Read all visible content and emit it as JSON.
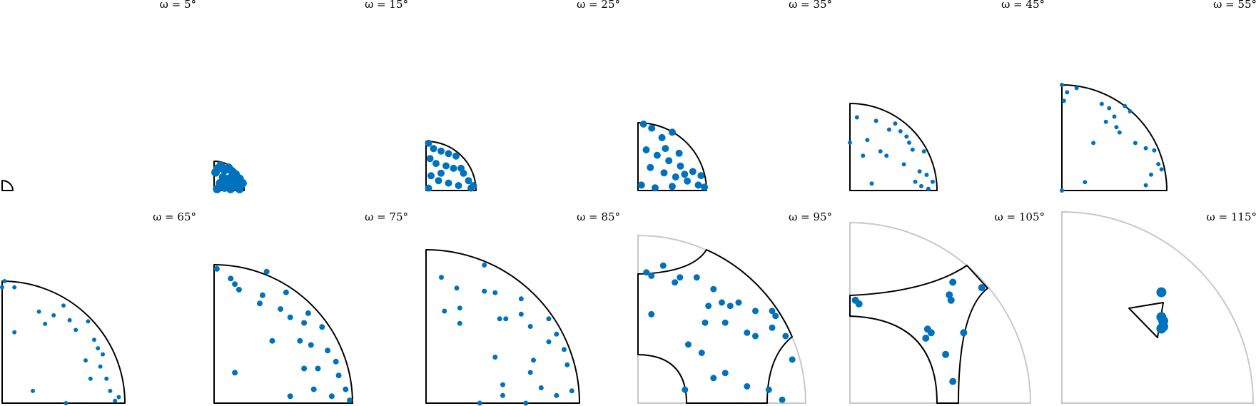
{
  "chart_data": {
    "type": "scatter",
    "layout": "2x6 grid of section plots",
    "marker_color": "#0072BD",
    "outline_color": "#000000",
    "outer_outline_color": "#c8c8c8",
    "grid": false,
    "panels": [
      {
        "label": "ω = 5°",
        "omega": 5,
        "points": []
      },
      {
        "label": "ω = 15°",
        "omega": 15,
        "points": [
          [
            0.05,
            0.62
          ],
          [
            0.12,
            0.75
          ],
          [
            0.22,
            0.85
          ],
          [
            0.35,
            0.7
          ],
          [
            0.48,
            0.78
          ],
          [
            0.6,
            0.65
          ],
          [
            0.72,
            0.55
          ],
          [
            0.85,
            0.4
          ],
          [
            0.3,
            0.45
          ],
          [
            0.5,
            0.4
          ],
          [
            0.65,
            0.3
          ],
          [
            0.2,
            0.25
          ],
          [
            0.4,
            0.2
          ],
          [
            0.75,
            0.15
          ],
          [
            0.95,
            0.25
          ],
          [
            0.1,
            0.05
          ],
          [
            0.55,
            0.05
          ],
          [
            0.85,
            0.05
          ],
          [
            0.35,
            0.1
          ],
          [
            0.62,
            0.5
          ]
        ]
      },
      {
        "label": "ω = 25°",
        "omega": 25,
        "points": [
          [
            0.05,
            0.96
          ],
          [
            0.15,
            0.85
          ],
          [
            0.3,
            0.8
          ],
          [
            0.45,
            0.75
          ],
          [
            0.6,
            0.7
          ],
          [
            0.08,
            0.65
          ],
          [
            0.2,
            0.55
          ],
          [
            0.4,
            0.5
          ],
          [
            0.55,
            0.45
          ],
          [
            0.75,
            0.35
          ],
          [
            0.85,
            0.2
          ],
          [
            0.95,
            0.1
          ],
          [
            0.1,
            0.3
          ],
          [
            0.25,
            0.2
          ],
          [
            0.45,
            0.15
          ],
          [
            0.65,
            0.1
          ],
          [
            0.05,
            0.05
          ],
          [
            0.7,
            0.45
          ],
          [
            0.3,
            0.35
          ],
          [
            0.9,
            0.05
          ]
        ]
      },
      {
        "label": "ω = 35°",
        "omega": 35,
        "points": [
          [
            0.08,
            0.98
          ],
          [
            0.2,
            0.92
          ],
          [
            0.5,
            0.86
          ],
          [
            0.35,
            0.78
          ],
          [
            0.12,
            0.6
          ],
          [
            0.28,
            0.52
          ],
          [
            0.45,
            0.44
          ],
          [
            0.62,
            0.36
          ],
          [
            0.8,
            0.28
          ],
          [
            0.92,
            0.22
          ],
          [
            0.18,
            0.34
          ],
          [
            0.38,
            0.26
          ],
          [
            0.55,
            0.2
          ],
          [
            0.72,
            0.14
          ],
          [
            0.88,
            0.08
          ],
          [
            0.05,
            0.08
          ],
          [
            0.25,
            0.04
          ],
          [
            0.5,
            0.06
          ],
          [
            0.68,
            0.24
          ],
          [
            0.4,
            0.62
          ],
          [
            0.6,
            0.55
          ],
          [
            0.97,
            0.05
          ]
        ]
      },
      {
        "label": "ω = 45°",
        "omega": 45,
        "points": [
          [
            0.08,
            0.84
          ],
          [
            0.3,
            0.8
          ],
          [
            0.52,
            0.77
          ],
          [
            0.58,
            0.68
          ],
          [
            0.65,
            0.62
          ],
          [
            0.2,
            0.58
          ],
          [
            0.35,
            0.45
          ],
          [
            0.42,
            0.4
          ],
          [
            0.68,
            0.55
          ],
          [
            0.72,
            0.47
          ],
          [
            0.85,
            0.45
          ],
          [
            0.62,
            0.3
          ],
          [
            0.8,
            0.22
          ],
          [
            0.88,
            0.18
          ],
          [
            0.75,
            0.1
          ],
          [
            0.82,
            0.05
          ],
          [
            0.95,
            0.1
          ],
          [
            0.9,
            0.02
          ],
          [
            0.25,
            0.08
          ],
          [
            0.0,
            0.55
          ],
          [
            0.15,
            0.4
          ],
          [
            0.45,
            0.7
          ]
        ]
      },
      {
        "label": "ω = 55°",
        "omega": 55,
        "points": [
          [
            0.0,
            1.0
          ],
          [
            0.05,
            0.93
          ],
          [
            0.14,
            0.97
          ],
          [
            0.02,
            0.85
          ],
          [
            0.38,
            0.82
          ],
          [
            0.45,
            0.78
          ],
          [
            0.6,
            0.8
          ],
          [
            0.5,
            0.7
          ],
          [
            0.42,
            0.65
          ],
          [
            0.55,
            0.55
          ],
          [
            0.3,
            0.45
          ],
          [
            0.7,
            0.45
          ],
          [
            0.8,
            0.4
          ],
          [
            0.88,
            0.38
          ],
          [
            0.92,
            0.25
          ],
          [
            0.95,
            0.2
          ],
          [
            0.85,
            0.15
          ],
          [
            0.22,
            0.08
          ],
          [
            0.8,
            0.05
          ],
          [
            0.0,
            0.0
          ],
          [
            0.52,
            0.6
          ],
          [
            0.65,
            0.75
          ]
        ]
      },
      {
        "label": "ω = 65°",
        "omega": 65,
        "points": [
          [
            0.02,
            1.0
          ],
          [
            0.0,
            0.95
          ],
          [
            0.1,
            0.95
          ],
          [
            0.3,
            0.75
          ],
          [
            0.42,
            0.72
          ],
          [
            0.5,
            0.8
          ],
          [
            0.55,
            0.68
          ],
          [
            0.7,
            0.67
          ],
          [
            0.35,
            0.65
          ],
          [
            0.6,
            0.6
          ],
          [
            0.75,
            0.52
          ],
          [
            0.78,
            0.45
          ],
          [
            0.82,
            0.4
          ],
          [
            0.68,
            0.35
          ],
          [
            0.72,
            0.2
          ],
          [
            0.85,
            0.2
          ],
          [
            0.88,
            0.1
          ],
          [
            0.25,
            0.1
          ],
          [
            0.95,
            0.05
          ],
          [
            0.52,
            0.0
          ],
          [
            0.1,
            0.58
          ],
          [
            0.8,
            0.3
          ],
          [
            0.92,
            0.02
          ]
        ]
      },
      {
        "label": "ω = 75°",
        "omega": 75,
        "points": [
          [
            0.02,
            0.97
          ],
          [
            0.12,
            0.9
          ],
          [
            0.15,
            0.86
          ],
          [
            0.18,
            0.82
          ],
          [
            0.38,
            0.95
          ],
          [
            0.35,
            0.78
          ],
          [
            0.52,
            0.8
          ],
          [
            0.33,
            0.72
          ],
          [
            0.48,
            0.68
          ],
          [
            0.55,
            0.62
          ],
          [
            0.68,
            0.65
          ],
          [
            0.65,
            0.58
          ],
          [
            0.78,
            0.55
          ],
          [
            0.42,
            0.45
          ],
          [
            0.62,
            0.45
          ],
          [
            0.7,
            0.42
          ],
          [
            0.82,
            0.38
          ],
          [
            0.88,
            0.3
          ],
          [
            0.65,
            0.25
          ],
          [
            0.75,
            0.25
          ],
          [
            0.9,
            0.2
          ],
          [
            0.95,
            0.1
          ],
          [
            0.55,
            0.05
          ],
          [
            0.72,
            0.1
          ],
          [
            0.85,
            0.05
          ],
          [
            0.15,
            0.22
          ],
          [
            0.98,
            0.02
          ]
        ]
      },
      {
        "label": "ω = 85°",
        "omega": 85,
        "points": [
          [
            0.38,
            0.9
          ],
          [
            0.1,
            0.82
          ],
          [
            0.2,
            0.75
          ],
          [
            0.38,
            0.73
          ],
          [
            0.45,
            0.72
          ],
          [
            0.62,
            0.68
          ],
          [
            0.12,
            0.6
          ],
          [
            0.22,
            0.62
          ],
          [
            0.48,
            0.55
          ],
          [
            0.52,
            0.55
          ],
          [
            0.62,
            0.58
          ],
          [
            0.8,
            0.55
          ],
          [
            0.22,
            0.52
          ],
          [
            0.68,
            0.5
          ],
          [
            0.8,
            0.4
          ],
          [
            0.85,
            0.45
          ],
          [
            0.7,
            0.28
          ],
          [
            0.9,
            0.35
          ],
          [
            0.45,
            0.3
          ],
          [
            0.68,
            0.2
          ],
          [
            0.92,
            0.25
          ],
          [
            0.5,
            0.12
          ],
          [
            0.75,
            0.1
          ],
          [
            0.85,
            0.05
          ],
          [
            0.95,
            0.08
          ],
          [
            0.5,
            0.05
          ],
          [
            0.65,
            0.0
          ],
          [
            0.35,
            0.0
          ]
        ]
      },
      {
        "label": "ω = 95°",
        "omega": 95,
        "points": [
          [
            0.15,
            0.82
          ],
          [
            0.05,
            0.78
          ],
          [
            0.08,
            0.76
          ],
          [
            0.25,
            0.75
          ],
          [
            0.35,
            0.75
          ],
          [
            0.45,
            0.68
          ],
          [
            0.5,
            0.6
          ],
          [
            0.55,
            0.58
          ],
          [
            0.6,
            0.6
          ],
          [
            0.42,
            0.58
          ],
          [
            0.7,
            0.55
          ],
          [
            0.8,
            0.55
          ],
          [
            0.82,
            0.52
          ],
          [
            0.4,
            0.48
          ],
          [
            0.52,
            0.48
          ],
          [
            0.65,
            0.42
          ],
          [
            0.7,
            0.4
          ],
          [
            0.8,
            0.45
          ],
          [
            0.88,
            0.4
          ],
          [
            0.3,
            0.35
          ],
          [
            0.38,
            0.3
          ],
          [
            0.92,
            0.26
          ],
          [
            0.45,
            0.15
          ],
          [
            0.52,
            0.18
          ],
          [
            0.65,
            0.1
          ],
          [
            0.78,
            0.08
          ],
          [
            0.86,
            0.02
          ],
          [
            0.28,
            0.08
          ],
          [
            0.08,
            0.53
          ],
          [
            0.22,
            0.72
          ]
        ]
      },
      {
        "label": "ω = 105°",
        "omega": 105,
        "points": [
          [
            0.03,
            0.57
          ],
          [
            0.05,
            0.55
          ],
          [
            0.57,
            0.67
          ],
          [
            0.55,
            0.6
          ],
          [
            0.56,
            0.57
          ],
          [
            0.73,
            0.64
          ],
          [
            0.43,
            0.41
          ],
          [
            0.45,
            0.39
          ],
          [
            0.63,
            0.39
          ],
          [
            0.42,
            0.36
          ],
          [
            0.53,
            0.27
          ],
          [
            0.57,
            0.12
          ]
        ]
      },
      {
        "label": "ω = 115°",
        "omega": 115,
        "points": [
          [
            0.52,
            0.58
          ],
          [
            0.52,
            0.45
          ],
          [
            0.53,
            0.43
          ],
          [
            0.52,
            0.39
          ],
          [
            0.53,
            0.4
          ]
        ]
      }
    ]
  }
}
